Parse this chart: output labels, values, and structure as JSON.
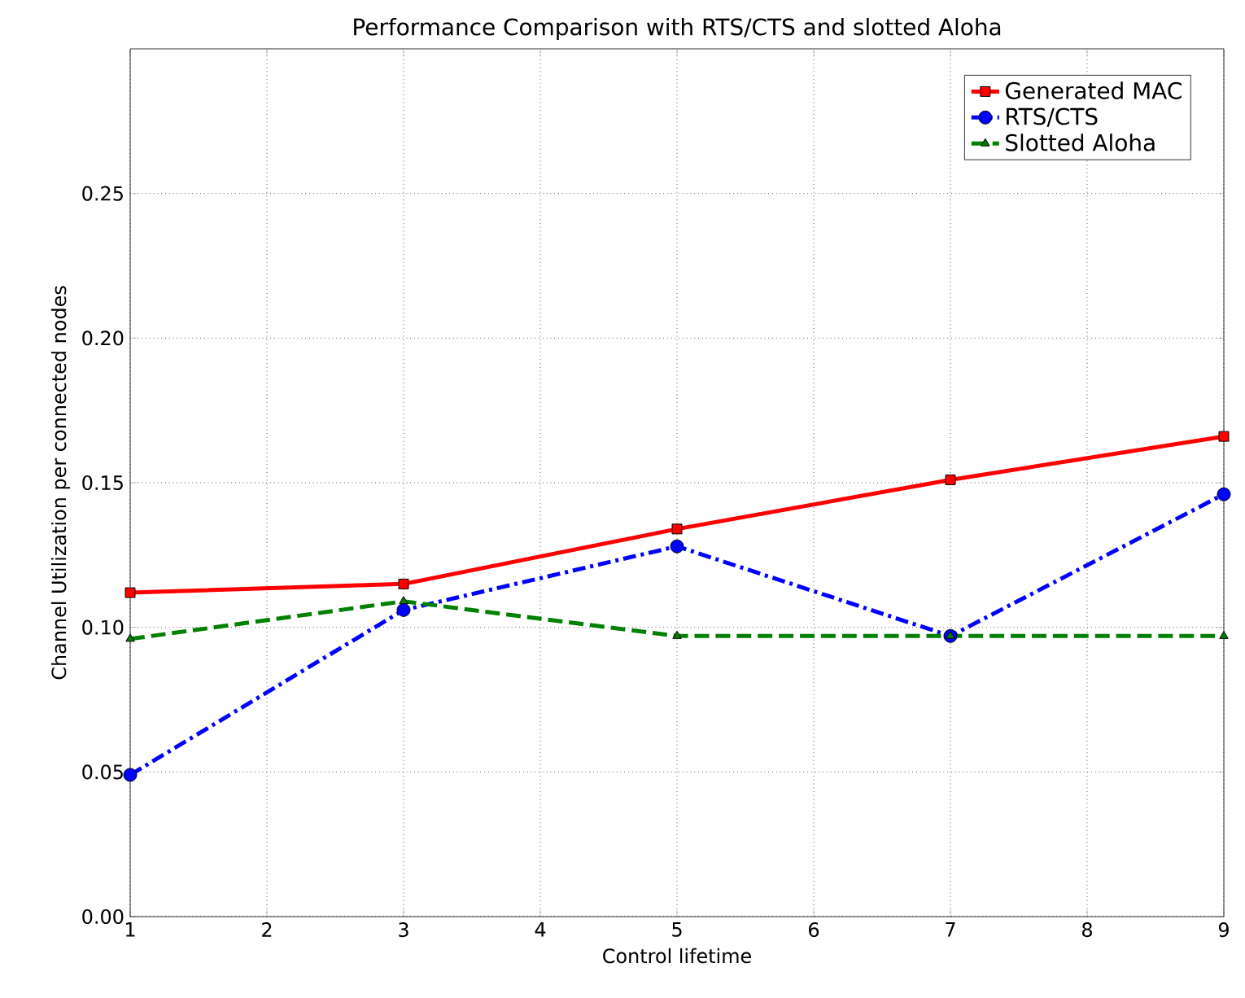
{
  "chart_data": {
    "type": "line",
    "title": "Performance Comparison with RTS/CTS and slotted Aloha",
    "xlabel": "Control lifetime",
    "ylabel": "Channel Utilization per connected nodes",
    "x": [
      1,
      3,
      5,
      7,
      9
    ],
    "series": [
      {
        "name": "Generated MAC",
        "color": "#ff0000",
        "values": [
          0.112,
          0.115,
          0.134,
          0.151,
          0.166
        ],
        "marker": "square",
        "line_style": "solid"
      },
      {
        "name": "RTS/CTS",
        "color": "#0000ff",
        "values": [
          0.049,
          0.106,
          0.128,
          0.097,
          0.146
        ],
        "marker": "circle",
        "line_style": "dashdot"
      },
      {
        "name": "Slotted Aloha",
        "color": "#008000",
        "values": [
          0.096,
          0.109,
          0.097,
          0.097,
          0.097
        ],
        "marker": "triangle",
        "line_style": "dashed"
      }
    ],
    "xlim": [
      1,
      9
    ],
    "xticks": [
      1,
      2,
      3,
      4,
      5,
      6,
      7,
      8,
      9
    ],
    "ylim": [
      0,
      0.3
    ],
    "yticks": [
      {
        "value": 0,
        "label": "0.00"
      },
      0.05,
      {
        "value": 0.1,
        "label": "0.10"
      },
      0.15,
      {
        "value": 0.2,
        "label": "0.20"
      },
      0.25
    ],
    "grid": true,
    "legend": "top right"
  }
}
